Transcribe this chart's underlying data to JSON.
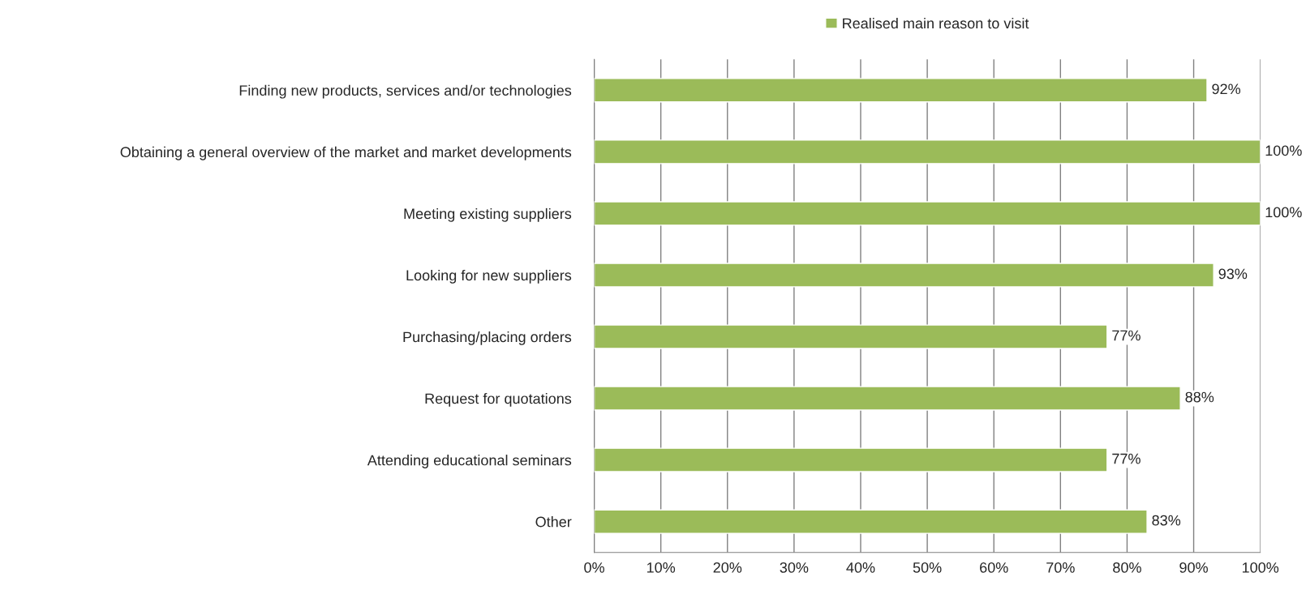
{
  "chart_data": {
    "type": "bar",
    "orientation": "horizontal",
    "categories": [
      "Finding new products, services and/or technologies",
      "Obtaining a general overview of the market and market developments",
      "Meeting existing suppliers",
      "Looking for new suppliers",
      "Purchasing/placing orders",
      "Request for quotations",
      "Attending educational seminars",
      "Other"
    ],
    "series": [
      {
        "name": "Realised main reason to visit",
        "color": "#9bbb59",
        "values": [
          92,
          100,
          100,
          93,
          77,
          88,
          77,
          83
        ],
        "value_labels": [
          "92%",
          "100%",
          "100%",
          "93%",
          "77%",
          "88%",
          "77%",
          "83%"
        ]
      }
    ],
    "xlim": [
      0,
      100
    ],
    "xticks": [
      {
        "value": 0,
        "label": "0%"
      },
      {
        "value": 10,
        "label": "10%"
      },
      {
        "value": 20,
        "label": "20%"
      },
      {
        "value": 30,
        "label": "30%"
      },
      {
        "value": 40,
        "label": "40%"
      },
      {
        "value": 50,
        "label": "50%"
      },
      {
        "value": 60,
        "label": "60%"
      },
      {
        "value": 70,
        "label": "70%"
      },
      {
        "value": 80,
        "label": "80%"
      },
      {
        "value": 90,
        "label": "90%"
      },
      {
        "value": 100,
        "label": "100%"
      }
    ],
    "grid": "x",
    "legend": "top"
  }
}
